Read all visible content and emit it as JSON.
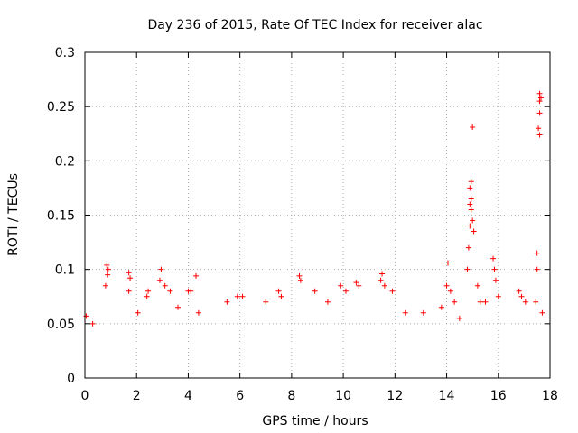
{
  "chart_data": {
    "type": "scatter",
    "title": "Day 236 of 2015, Rate Of TEC Index for receiver alac",
    "xlabel": "GPS time / hours",
    "ylabel": "ROTI / TECUs",
    "xlim": [
      0,
      18
    ],
    "ylim": [
      0,
      0.3
    ],
    "x_ticks": [
      0,
      2,
      4,
      6,
      8,
      10,
      12,
      14,
      16,
      18
    ],
    "x_tick_labels": [
      "0",
      "2",
      "4",
      "6",
      "8",
      "10",
      "12",
      "14",
      "16",
      "18"
    ],
    "y_ticks": [
      0,
      0.05,
      0.1,
      0.15,
      0.2,
      0.25,
      0.3
    ],
    "y_tick_labels": [
      "0",
      "0.05",
      "0.1",
      "0.15",
      "0.2",
      "0.25",
      "0.3"
    ],
    "grid": true,
    "marker": "+",
    "color": "#ff0000",
    "series": [
      {
        "name": "ROTI",
        "points": [
          [
            0.05,
            0.057
          ],
          [
            0.3,
            0.05
          ],
          [
            0.85,
            0.104
          ],
          [
            0.9,
            0.1
          ],
          [
            0.88,
            0.095
          ],
          [
            0.8,
            0.085
          ],
          [
            1.7,
            0.097
          ],
          [
            1.75,
            0.092
          ],
          [
            1.7,
            0.08
          ],
          [
            2.05,
            0.06
          ],
          [
            2.4,
            0.075
          ],
          [
            2.45,
            0.08
          ],
          [
            2.95,
            0.1
          ],
          [
            2.9,
            0.09
          ],
          [
            3.1,
            0.085
          ],
          [
            3.3,
            0.08
          ],
          [
            3.6,
            0.065
          ],
          [
            4.0,
            0.08
          ],
          [
            4.1,
            0.08
          ],
          [
            4.3,
            0.094
          ],
          [
            4.4,
            0.06
          ],
          [
            5.5,
            0.07
          ],
          [
            5.9,
            0.075
          ],
          [
            6.1,
            0.075
          ],
          [
            7.0,
            0.07
          ],
          [
            7.5,
            0.08
          ],
          [
            7.6,
            0.075
          ],
          [
            8.3,
            0.094
          ],
          [
            8.35,
            0.09
          ],
          [
            8.9,
            0.08
          ],
          [
            9.4,
            0.07
          ],
          [
            9.9,
            0.085
          ],
          [
            10.1,
            0.08
          ],
          [
            10.5,
            0.088
          ],
          [
            10.6,
            0.085
          ],
          [
            11.5,
            0.096
          ],
          [
            11.45,
            0.09
          ],
          [
            11.6,
            0.085
          ],
          [
            11.9,
            0.08
          ],
          [
            12.4,
            0.06
          ],
          [
            13.1,
            0.06
          ],
          [
            13.8,
            0.065
          ],
          [
            14.05,
            0.106
          ],
          [
            14.0,
            0.085
          ],
          [
            14.15,
            0.08
          ],
          [
            14.3,
            0.07
          ],
          [
            14.5,
            0.055
          ],
          [
            14.8,
            0.1
          ],
          [
            14.85,
            0.12
          ],
          [
            14.9,
            0.14
          ],
          [
            14.95,
            0.165
          ],
          [
            14.9,
            0.16
          ],
          [
            14.95,
            0.181
          ],
          [
            14.9,
            0.175
          ],
          [
            14.95,
            0.155
          ],
          [
            15.0,
            0.145
          ],
          [
            15.05,
            0.135
          ],
          [
            15.0,
            0.231
          ],
          [
            15.2,
            0.085
          ],
          [
            15.3,
            0.07
          ],
          [
            15.5,
            0.07
          ],
          [
            15.8,
            0.11
          ],
          [
            15.85,
            0.1
          ],
          [
            15.9,
            0.09
          ],
          [
            16.0,
            0.075
          ],
          [
            16.8,
            0.08
          ],
          [
            16.9,
            0.075
          ],
          [
            17.05,
            0.07
          ],
          [
            17.5,
            0.115
          ],
          [
            17.5,
            0.1
          ],
          [
            17.45,
            0.07
          ],
          [
            17.6,
            0.262
          ],
          [
            17.65,
            0.258
          ],
          [
            17.6,
            0.255
          ],
          [
            17.6,
            0.244
          ],
          [
            17.55,
            0.23
          ],
          [
            17.6,
            0.224
          ],
          [
            17.7,
            0.06
          ]
        ]
      }
    ]
  }
}
